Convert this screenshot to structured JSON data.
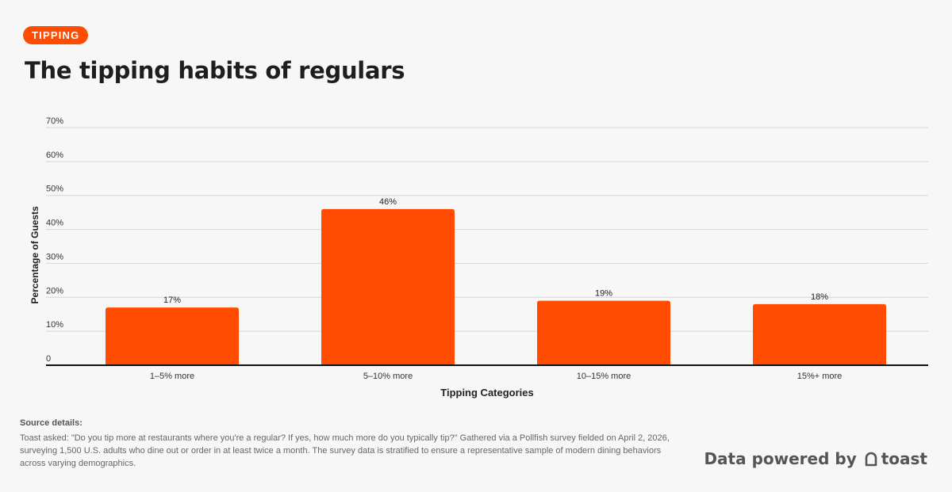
{
  "header": {
    "tag": "TIPPING",
    "title": "The tipping habits of regulars"
  },
  "chart_data": {
    "type": "bar",
    "title": "The tipping habits of regulars",
    "xlabel": "Tipping Categories",
    "ylabel": "Percentage of Guests",
    "categories": [
      "1–5% more",
      "5–10% more",
      "10–15% more",
      "15%+ more"
    ],
    "values": [
      17,
      46,
      19,
      18
    ],
    "data_labels": [
      "17%",
      "46%",
      "19%",
      "18%"
    ],
    "ylim": [
      0,
      70
    ],
    "y_ticks": [
      0,
      10,
      20,
      30,
      40,
      50,
      60,
      70
    ],
    "y_tick_labels": [
      "0",
      "10%",
      "20%",
      "30%",
      "40%",
      "50%",
      "60%",
      "70%"
    ],
    "grid": true,
    "bar_color": "#ff4c00",
    "legend": "none"
  },
  "footer": {
    "source_title": "Source details:",
    "source_text": "Toast asked: \"Do you tip more at restaurants where you're a regular? If yes, how much more do you typically tip?\" Gathered via a Pollfish survey fielded on April 2, 2026, surveying 1,500 U.S. adults who dine out or order in at least twice a month. The survey data is stratified to ensure a representative sample of modern dining behaviors across varying demographics.",
    "powered_prefix": "Data powered by",
    "brand": "toast",
    "brand_icon": "toast-logo-icon"
  },
  "colors": {
    "accent": "#ff4c00",
    "background": "#f7f7f7",
    "text": "#1e1e1e",
    "grid": "#d6d6d6"
  }
}
